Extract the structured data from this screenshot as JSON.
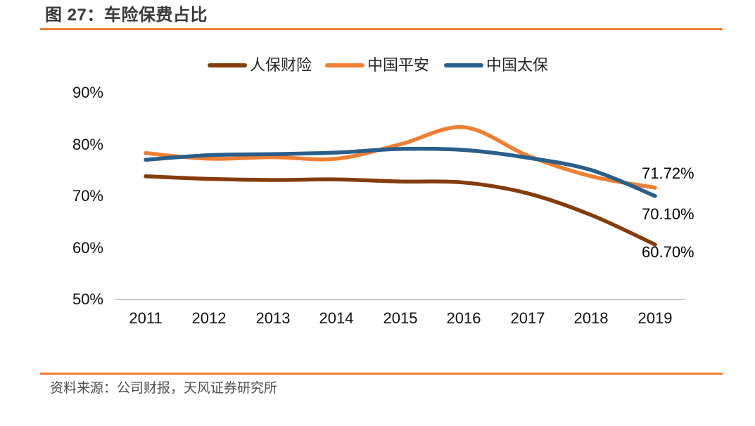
{
  "figure": {
    "title": "图 27：车险保费占比",
    "source": "资料来源：公司财报，天风证券研究所",
    "accent_color": "#EE7E2E"
  },
  "chart_data": {
    "type": "line",
    "smoothed": true,
    "title": "车险保费占比",
    "xlabel": "",
    "ylabel": "",
    "categories": [
      "2011",
      "2012",
      "2013",
      "2014",
      "2015",
      "2016",
      "2017",
      "2018",
      "2019"
    ],
    "series": [
      {
        "name": "人保财险",
        "color": "#843C0C",
        "values": [
          73.9,
          73.4,
          73.2,
          73.3,
          72.9,
          72.7,
          70.6,
          66.4,
          60.7
        ],
        "end_label": "60.70%"
      },
      {
        "name": "中国平安",
        "color": "#EF7F33",
        "values": [
          78.4,
          77.3,
          77.6,
          77.3,
          80.1,
          83.4,
          77.9,
          73.9,
          71.72
        ],
        "end_label": "71.72%"
      },
      {
        "name": "中国太保",
        "color": "#2A5E8B",
        "values": [
          77.1,
          78.0,
          78.2,
          78.5,
          79.2,
          79.0,
          77.5,
          75.1,
          70.1
        ],
        "end_label": "70.10%"
      }
    ],
    "y_ticks": [
      "90%",
      "80%",
      "70%",
      "60%",
      "50%"
    ],
    "ylim": [
      50,
      90
    ],
    "grid": false,
    "legend_position": "top-center"
  }
}
